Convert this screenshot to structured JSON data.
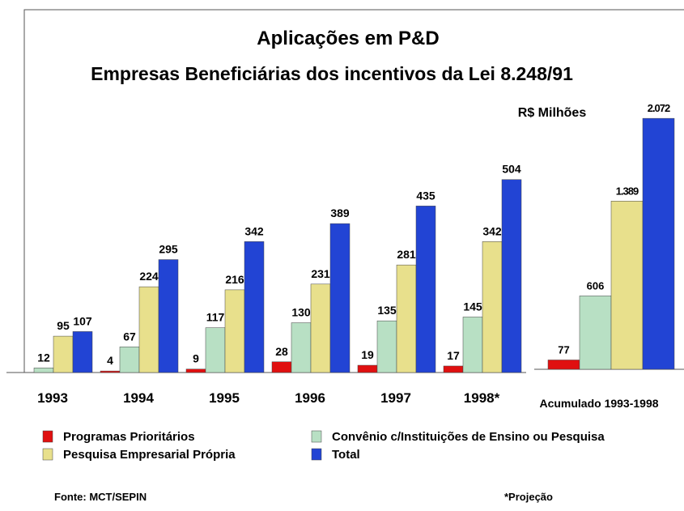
{
  "chart_data": [
    {
      "type": "bar",
      "title": "Aplicações em P&D",
      "subtitle": "Empresas Beneficiárias dos incentivos da Lei 8.248/91",
      "unit_label": "R$ Milhões",
      "source": "Fonte: MCT/SEPIN",
      "note": "*Projeção",
      "categories": [
        "1993",
        "1994",
        "1995",
        "1996",
        "1997",
        "1998*"
      ],
      "series": [
        {
          "name": "Programas Prioritários",
          "color": "#e01010",
          "values": [
            null,
            4,
            9,
            28,
            19,
            17
          ]
        },
        {
          "name": "Convênio c/Instituições de Ensino ou Pesquisa",
          "color": "#b8e0c4",
          "values": [
            12,
            67,
            117,
            130,
            135,
            145
          ]
        },
        {
          "name": "Pesquisa Empresarial Própria",
          "color": "#e8e08c",
          "values": [
            95,
            224,
            216,
            231,
            281,
            342
          ]
        },
        {
          "name": "Total",
          "color": "#2244d4",
          "values": [
            107,
            295,
            342,
            389,
            435,
            504
          ]
        }
      ],
      "ylim": [
        0,
        550
      ]
    },
    {
      "type": "bar",
      "categories": [
        "Acumulado 1993-1998"
      ],
      "series": [
        {
          "color": "#e01010",
          "values": [
            77
          ],
          "value_labels": [
            "77"
          ]
        },
        {
          "color": "#b8e0c4",
          "values": [
            606
          ],
          "value_labels": [
            "606"
          ]
        },
        {
          "color": "#e8e08c",
          "values": [
            1389
          ],
          "value_labels": [
            "1.389"
          ]
        },
        {
          "color": "#2244d4",
          "values": [
            2072
          ],
          "value_labels": [
            "2.072"
          ]
        }
      ],
      "ylim": [
        0,
        2200
      ]
    }
  ]
}
